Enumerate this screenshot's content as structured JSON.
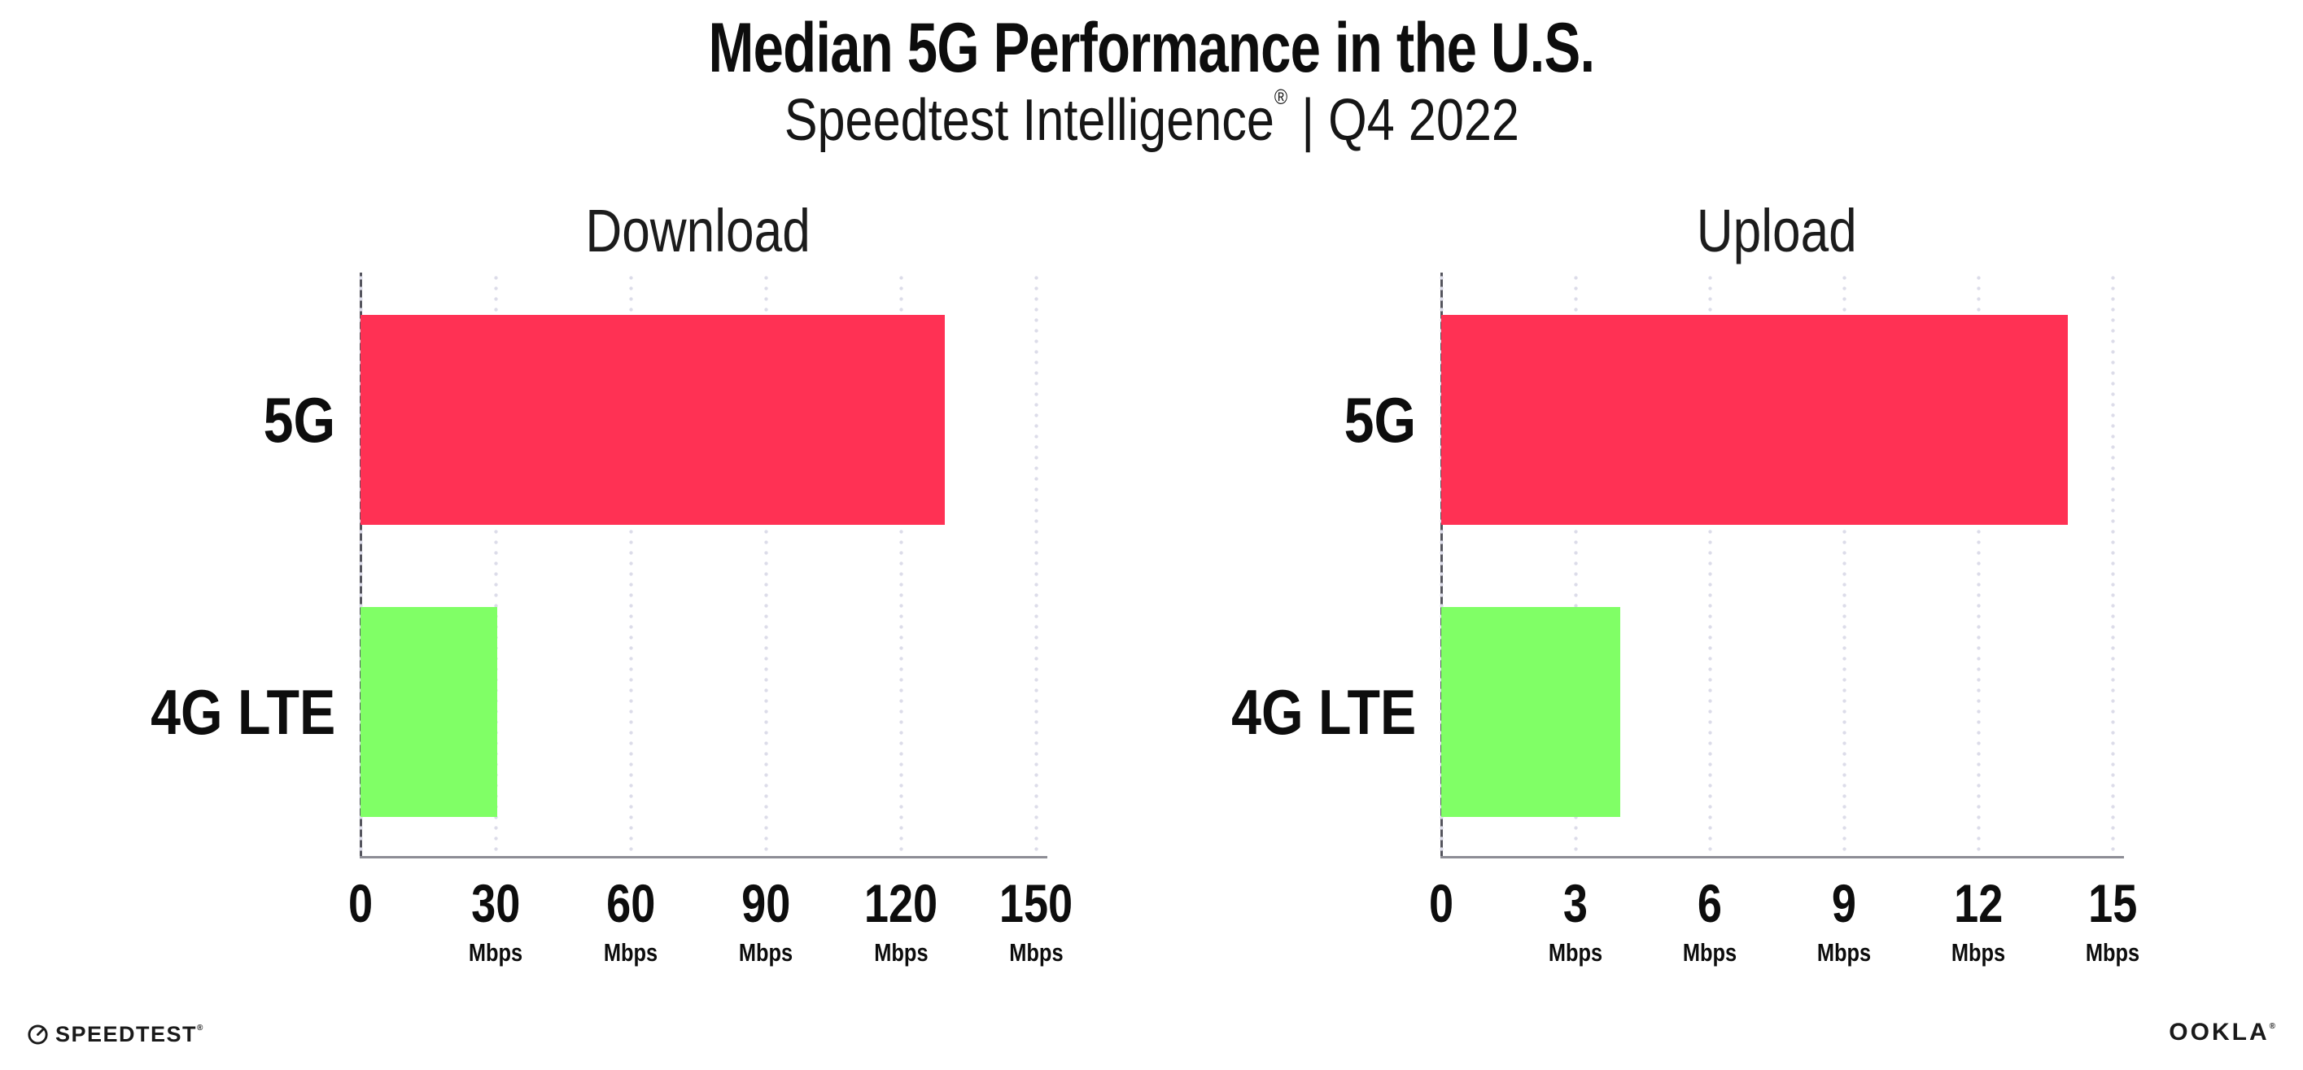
{
  "header": {
    "title": "Median 5G Performance in the U.S.",
    "subtitle_brand": "Speedtest Intelligence",
    "subtitle_reg": "®",
    "subtitle_rest": " | Q4 2022"
  },
  "colors": {
    "bar_5g": "#ff3154",
    "bar_4g_lte": "#80ff66",
    "gridline": "#dcdce9",
    "y_axis": "#55555e",
    "x_axis": "#8d8d95",
    "text": "#0d0d0d",
    "background": "#ffffff"
  },
  "chart_data": [
    {
      "type": "bar",
      "orientation": "horizontal",
      "title": "Download",
      "categories": [
        "5G",
        "4G LTE"
      ],
      "values": [
        129.8,
        30.4
      ],
      "unit": "Mbps",
      "xlim": [
        0,
        150
      ],
      "xticks": [
        0,
        30,
        60,
        90,
        120,
        150
      ],
      "bar_colors": [
        "#ff3154",
        "#80ff66"
      ],
      "grid": "dotted-vertical",
      "legend": "none"
    },
    {
      "type": "bar",
      "orientation": "horizontal",
      "title": "Upload",
      "categories": [
        "5G",
        "4G LTE"
      ],
      "values": [
        14.0,
        4.0
      ],
      "unit": "Mbps",
      "xlim": [
        0,
        15
      ],
      "xticks": [
        0,
        3,
        6,
        9,
        12,
        15
      ],
      "bar_colors": [
        "#ff3154",
        "#80ff66"
      ],
      "grid": "dotted-vertical",
      "legend": "none"
    }
  ],
  "footer": {
    "speedtest_label": "SPEEDTEST",
    "speedtest_reg": "®",
    "ookla_label": "OOKLA",
    "ookla_reg": "®",
    "gauge_icon": "speedtest-gauge"
  }
}
